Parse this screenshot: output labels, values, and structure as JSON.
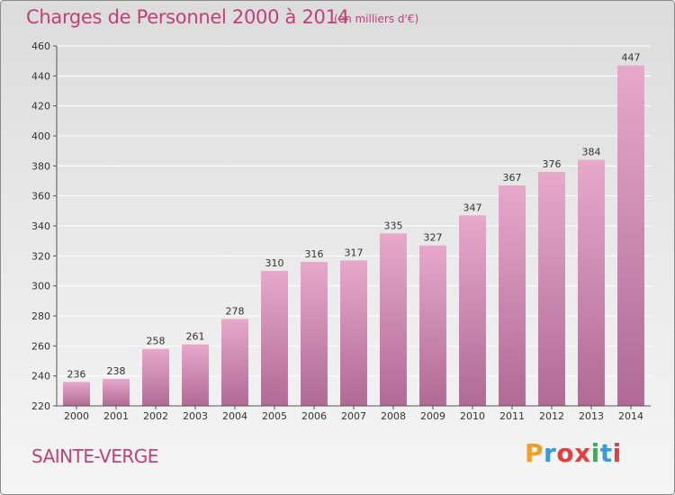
{
  "header": {
    "title": "Charges de Personnel 2000 à 2014",
    "subtitle": "(en milliers d'€)"
  },
  "footer": {
    "commune": "SAINTE-VERGE",
    "logo": {
      "letters": [
        "P",
        "r",
        "o",
        "x",
        "i",
        "t",
        "i"
      ],
      "colors": [
        "#f0a020",
        "#3a9ad9",
        "#e04040",
        "#e04040",
        "#3ab24a",
        "#3a9ad9",
        "#e04040"
      ]
    }
  },
  "colors": {
    "bar_top": "#e7a8cb",
    "bar_bottom": "#b06a95",
    "text_accent": "#c0407a",
    "grid": "#ffffff",
    "axis": "#555555"
  },
  "chart_data": {
    "type": "bar",
    "categories": [
      "2000",
      "2001",
      "2002",
      "2003",
      "2004",
      "2005",
      "2006",
      "2007",
      "2008",
      "2009",
      "2010",
      "2011",
      "2012",
      "2013",
      "2014"
    ],
    "values": [
      236,
      238,
      258,
      261,
      278,
      310,
      316,
      317,
      335,
      327,
      347,
      367,
      376,
      384,
      447
    ],
    "title": "Charges de Personnel 2000 à 2014",
    "subtitle": "(en milliers d'€)",
    "xlabel": "",
    "ylabel": "",
    "ylim": [
      220,
      460
    ],
    "yticks": [
      220,
      240,
      260,
      280,
      300,
      320,
      340,
      360,
      380,
      400,
      420,
      440,
      460
    ],
    "grid": true,
    "legend": "none"
  }
}
